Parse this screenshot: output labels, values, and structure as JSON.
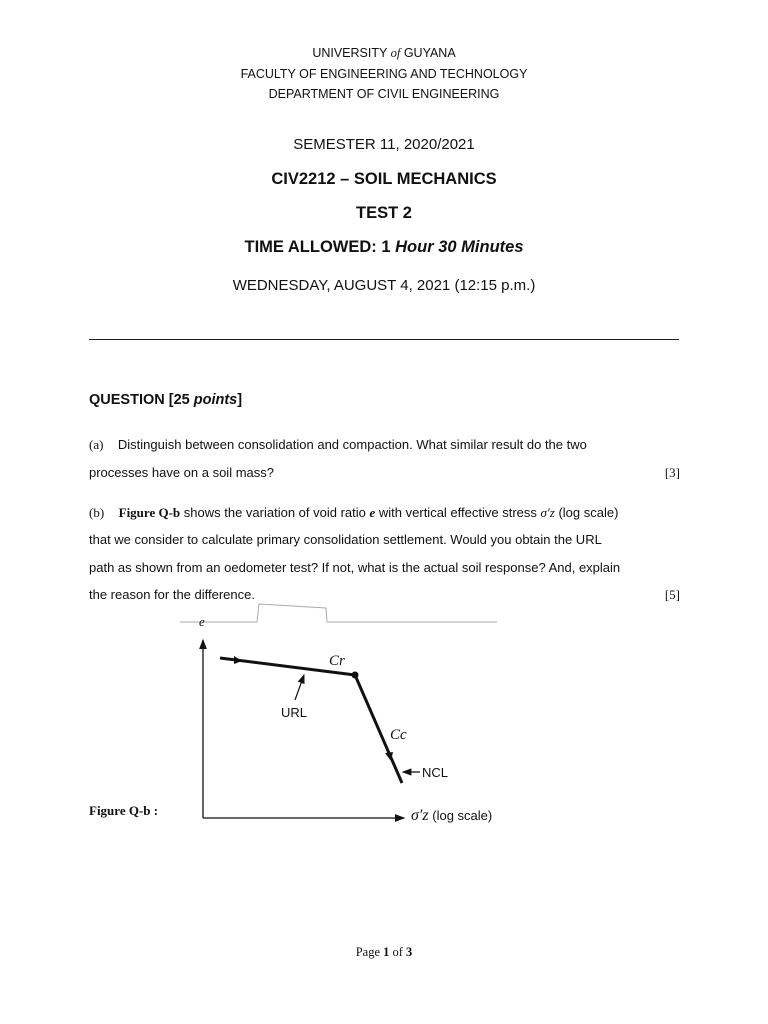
{
  "header": {
    "university_pre": "UNIVERSITY",
    "university_of": "of",
    "university_post": "GUYANA",
    "faculty": "FACULTY OF ENGINEERING AND TECHNOLOGY",
    "department": "DEPARTMENT OF CIVIL ENGINEERING",
    "semester": "SEMESTER 11, 2020/2021",
    "course": "CIV2212 – SOIL MECHANICS",
    "test": "TEST 2",
    "time_label": "TIME ALLOWED: 1",
    "time_value": "Hour 30 Minutes",
    "date": "WEDNESDAY, AUGUST 4, 2021 (12:15 p.m.)"
  },
  "question": {
    "title_pre": "QUESTION [25",
    "title_points": "points",
    "title_post": "]",
    "a_label": "(a)",
    "a_line1": "Distinguish between consolidation and compaction. What similar result do the two",
    "a_line2": "processes have on a soil mass?",
    "a_marks": "[3]",
    "b_label": "(b)",
    "b_fig_ref": "Figure Q-b",
    "b_line1_mid": "shows the variation of void ratio",
    "b_e": "e",
    "b_line1_mid2": "with vertical effective stress",
    "b_sigma": "σ′z",
    "b_line1_end": "(log scale)",
    "b_line2": "that we consider to calculate primary consolidation settlement. Would you obtain the URL",
    "b_line3": "path as shown from an oedometer test? If not, what is the actual soil response? And, explain",
    "b_line4": "the reason for the difference.",
    "b_marks": "[5]"
  },
  "figure": {
    "caption": "Figure Q-b :",
    "y_label": "e",
    "x_label_sym": "σ′z",
    "x_label_text": "(log scale)",
    "cr": "Cr",
    "cc": "Cc",
    "url": "URL",
    "ncl": "NCL"
  },
  "footer": {
    "page_pre": "Page",
    "page_num": "1",
    "page_of": "of",
    "page_total": "3"
  }
}
